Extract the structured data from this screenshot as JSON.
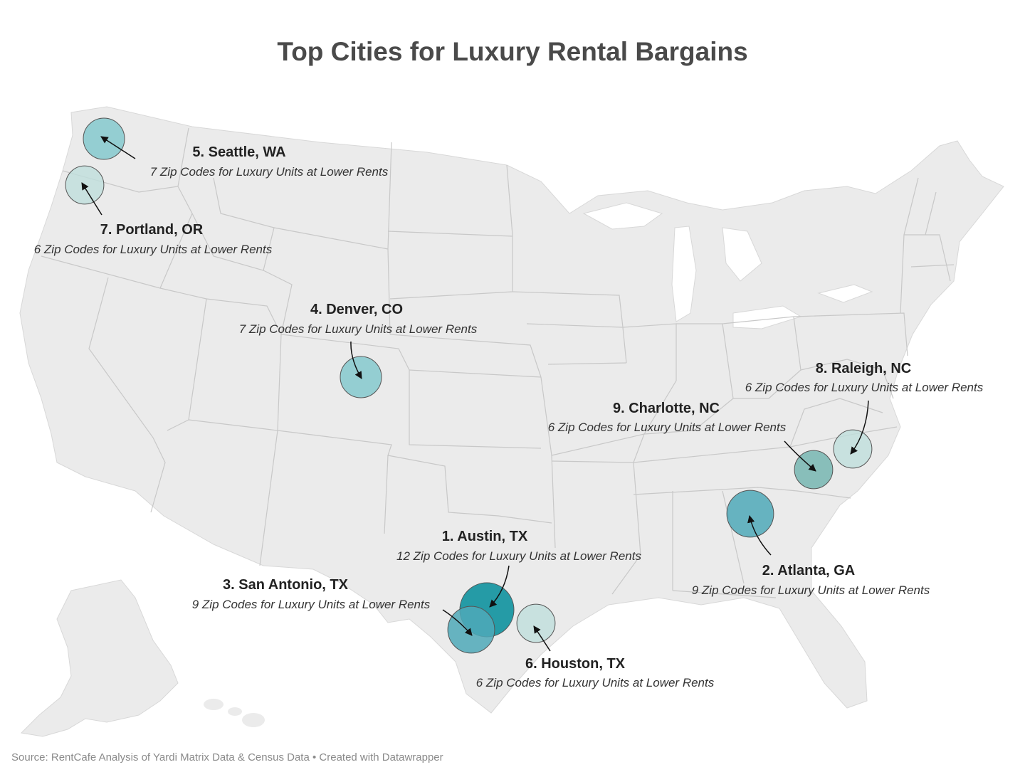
{
  "title": "Top Cities for Luxury Rental Bargains",
  "source": "Source: RentCafe Analysis of Yardi Matrix Data & Census Data • Created with Datawrapper",
  "colors": {
    "land": "#ebebeb",
    "borders": "#c8c8c8",
    "bubble_scale": [
      "#bfdfdc",
      "#7ec7cc",
      "#4fa9b8",
      "#13949f"
    ]
  },
  "cities": [
    {
      "rank": 1,
      "label": "1. Austin, TX",
      "desc": "12 Zip Codes for Luxury Units at Lower Rents",
      "zip_codes": 12
    },
    {
      "rank": 2,
      "label": "2. Atlanta, GA",
      "desc": "9 Zip Codes for Luxury Units at Lower Rents",
      "zip_codes": 9
    },
    {
      "rank": 3,
      "label": "3. San Antonio, TX",
      "desc": "9 Zip Codes for Luxury Units at Lower Rents",
      "zip_codes": 9
    },
    {
      "rank": 4,
      "label": "4. Denver, CO",
      "desc": "7 Zip Codes for Luxury Units at Lower Rents",
      "zip_codes": 7
    },
    {
      "rank": 5,
      "label": "5. Seattle, WA",
      "desc": "7 Zip Codes for Luxury Units at Lower Rents",
      "zip_codes": 7
    },
    {
      "rank": 6,
      "label": "6. Houston, TX",
      "desc": "6 Zip Codes for Luxury Units at Lower Rents",
      "zip_codes": 6
    },
    {
      "rank": 7,
      "label": "7. Portland, OR",
      "desc": "6 Zip Codes for Luxury Units at Lower Rents",
      "zip_codes": 6
    },
    {
      "rank": 8,
      "label": "8. Raleigh, NC",
      "desc": "6 Zip Codes for Luxury Units at Lower Rents",
      "zip_codes": 6
    },
    {
      "rank": 9,
      "label": "9. Charlotte, NC",
      "desc": "6 Zip Codes for Luxury Units at Lower Rents",
      "zip_codes": 6
    }
  ]
}
